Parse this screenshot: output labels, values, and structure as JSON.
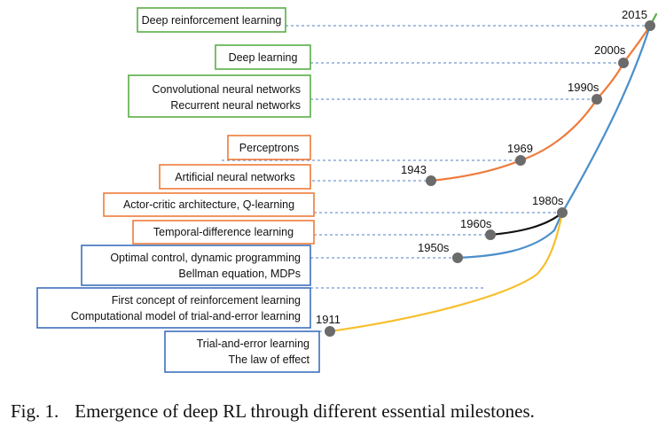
{
  "colors": {
    "green": "#5aad47",
    "orange": "#ee7b3a",
    "blue": "#4a8fcb",
    "boxBlue": "#3d6fbd",
    "black": "#111111",
    "yellow": "#f6bf2c",
    "node": "#6b6b6b",
    "guide": "#4f7fc0"
  },
  "boxes": [
    {
      "lines": [
        "Deep reinforcement learning"
      ],
      "color": "green"
    },
    {
      "lines": [
        "Deep learning"
      ],
      "color": "green"
    },
    {
      "lines": [
        "Convolutional neural networks",
        "Recurrent neural networks"
      ],
      "color": "green"
    },
    {
      "lines": [
        "Perceptrons"
      ],
      "color": "orange"
    },
    {
      "lines": [
        "Artificial neural networks"
      ],
      "color": "orange"
    },
    {
      "lines": [
        "Actor-critic architecture, Q-learning"
      ],
      "color": "orange"
    },
    {
      "lines": [
        "Temporal-difference learning"
      ],
      "color": "orange"
    },
    {
      "lines": [
        "Optimal control, dynamic programming",
        "Bellman equation, MDPs"
      ],
      "color": "boxBlue"
    },
    {
      "lines": [
        "First concept of reinforcement learning",
        "Computational model of trial-and-error learning"
      ],
      "color": "boxBlue"
    },
    {
      "lines": [
        "Trial-and-error learning",
        "The law of effect"
      ],
      "color": "boxBlue"
    }
  ],
  "years": [
    "2015",
    "2000s",
    "1990s",
    "1969",
    "1943",
    "1980s",
    "1960s",
    "1950s",
    "1911"
  ],
  "caption": {
    "number": "Fig. 1.",
    "text": "Emergence of deep RL through different essential milestones."
  }
}
